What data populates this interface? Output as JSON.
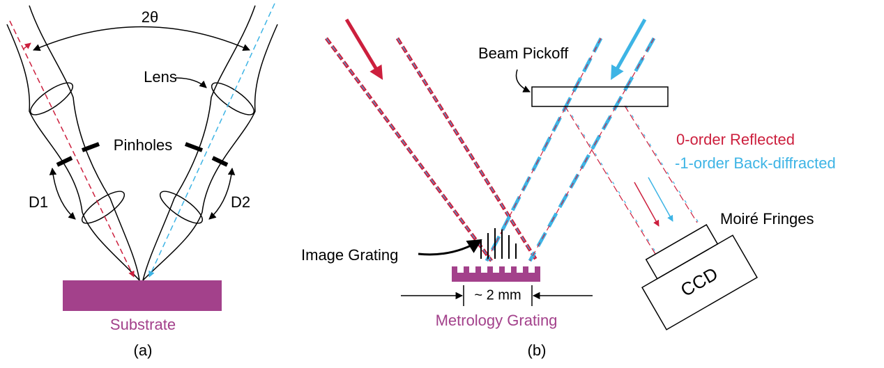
{
  "panel_a": {
    "angle_label": "2θ",
    "lens_label": "Lens",
    "pinholes_label": "Pinholes",
    "d1_label": "D1",
    "d2_label": "D2",
    "substrate_label": "Substrate",
    "caption": "(a)"
  },
  "panel_b": {
    "pickoff_label": "Beam Pickoff",
    "reflected_label": "0-order Reflected",
    "diffracted_label": "-1-order Back-diffracted",
    "fringes_label": "Moiré Fringes",
    "ccd_label": "CCD",
    "image_grating_label": "Image Grating",
    "width_label": "~ 2 mm",
    "metrology_label": "Metrology Grating",
    "caption": "(b)"
  }
}
